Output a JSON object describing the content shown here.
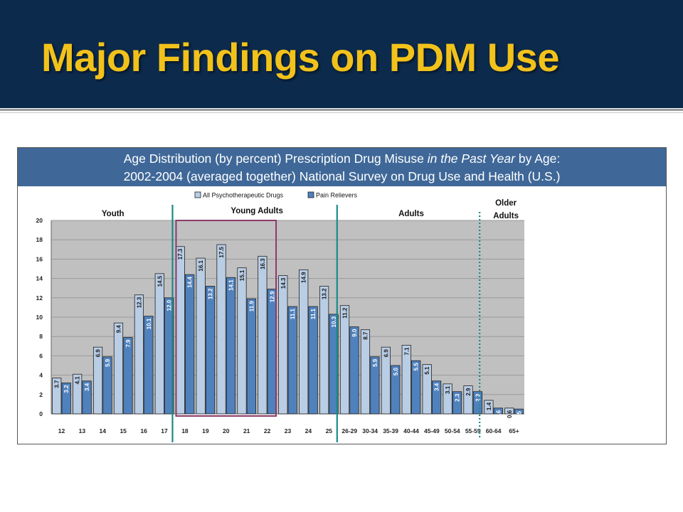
{
  "slide": {
    "title": "Major Findings on PDM Use"
  },
  "colors": {
    "header_bg": "#0c2a4c",
    "title_text": "#f2c21b",
    "chart_title_bg": "#3f6898",
    "plot_bg": "#c0c0c0",
    "series_all": "#b9cde5",
    "series_pain": "#4f81bd",
    "group_line": "#1a8a8a",
    "highlight_box": "#8b3a6b"
  },
  "chart_data": {
    "type": "bar",
    "title_line1_pre": "Age Distribution (by percent) Prescription Drug Misuse ",
    "title_line1_italic": "in the Past Year",
    "title_line1_post": " by Age:",
    "title_line2": "2002-2004 (averaged together) National Survey on Drug Use and Health (U.S.)",
    "categories": [
      "12",
      "13",
      "14",
      "15",
      "16",
      "17",
      "18",
      "19",
      "20",
      "21",
      "22",
      "23",
      "24",
      "25",
      "26-29",
      "30-34",
      "35-39",
      "40-44",
      "45-49",
      "50-54",
      "55-59",
      "60-64",
      "65+"
    ],
    "series": [
      {
        "name": "All Psychotherapeutic Drugs",
        "values": [
          3.7,
          4.1,
          6.9,
          9.4,
          12.3,
          14.5,
          17.3,
          16.1,
          17.5,
          15.1,
          16.3,
          14.3,
          14.9,
          13.2,
          11.2,
          8.7,
          6.9,
          7.1,
          5.1,
          3.1,
          2.9,
          1.4,
          0.6
        ]
      },
      {
        "name": "Pain Relievers",
        "values": [
          3.2,
          3.4,
          5.9,
          7.9,
          10.1,
          12.0,
          14.4,
          13.2,
          14.1,
          11.9,
          12.9,
          11.1,
          11.1,
          10.3,
          9.0,
          5.9,
          5.0,
          5.5,
          3.4,
          2.3,
          2.3,
          0.6,
          0.5
        ]
      }
    ],
    "data_labels": {
      "all": [
        "3.7",
        "4.1",
        "6.9",
        "9.4",
        "12.3",
        "14.5",
        "17.3",
        "16.1",
        "17.5",
        "15.1",
        "16.3",
        "14.3",
        "14.9",
        "13.2",
        "11.2",
        "8.7",
        "6.9",
        "7.1",
        "5.1",
        "3.1",
        "2.9",
        "1.4",
        "0.6"
      ],
      "pain": [
        "3.2",
        "3.4",
        "5.9",
        "7.9",
        "10.1",
        "12.0",
        "14.4",
        "13.2",
        "14.1",
        "11.9",
        "12.9",
        "11.1",
        "11.1",
        "10.3",
        "9.0",
        "5.9",
        "5.0",
        "5.5",
        "3.4",
        "2.3",
        "2.3",
        "0.6",
        "0.5"
      ]
    },
    "ylim": [
      0,
      20
    ],
    "y_ticks": [
      "0",
      "2",
      "4",
      "6",
      "8",
      "10",
      "12",
      "14",
      "16",
      "18",
      "20"
    ],
    "grid": true,
    "legend_position": "top-center",
    "groups": [
      {
        "label": "Youth",
        "first": 0,
        "last": 5
      },
      {
        "label": "Young Adults",
        "first": 6,
        "last": 13
      },
      {
        "label": "Adults",
        "first": 14,
        "last": 20
      },
      {
        "label_line1": "Older",
        "label_line2": "Adults",
        "first": 21,
        "last": 22
      }
    ],
    "highlight_range": [
      6,
      10
    ]
  }
}
